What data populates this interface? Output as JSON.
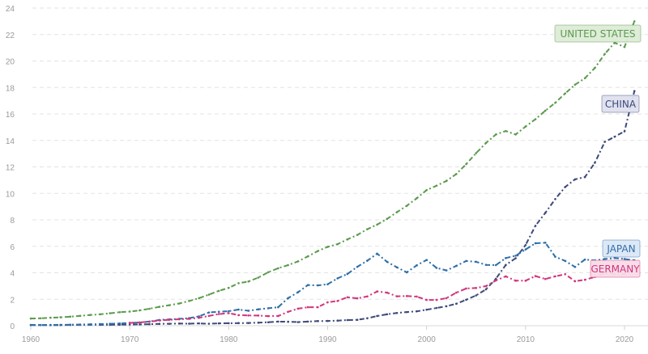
{
  "chart_data": {
    "type": "line",
    "title": "",
    "xlabel": "",
    "ylabel": "",
    "xlim": [
      1960,
      2021
    ],
    "ylim": [
      0,
      24
    ],
    "x_ticks": [
      "1960",
      "1970",
      "1980",
      "1990",
      "2000",
      "2010",
      "2020"
    ],
    "y_ticks": [
      "0",
      "2",
      "4",
      "6",
      "8",
      "10",
      "12",
      "14",
      "16",
      "18",
      "20",
      "22",
      "24"
    ],
    "grid": "horizontal dashed",
    "series": [
      {
        "name": "UNITED STATES",
        "color": "#5b9a4e",
        "label_bg": "#dcebd6",
        "start": 1960,
        "values": [
          0.543,
          0.563,
          0.605,
          0.638,
          0.686,
          0.744,
          0.815,
          0.862,
          0.943,
          1.02,
          1.07,
          1.16,
          1.28,
          1.43,
          1.55,
          1.68,
          1.87,
          2.08,
          2.35,
          2.63,
          2.86,
          3.21,
          3.34,
          3.64,
          4.04,
          4.34,
          4.58,
          4.86,
          5.24,
          5.64,
          5.96,
          6.16,
          6.52,
          6.86,
          7.29,
          7.64,
          8.07,
          8.58,
          9.06,
          9.63,
          10.25,
          10.58,
          10.94,
          11.46,
          12.21,
          13.04,
          13.81,
          14.45,
          14.71,
          14.45,
          15.05,
          15.6,
          16.25,
          16.84,
          17.55,
          18.21,
          18.7,
          19.48,
          20.53,
          21.38,
          21.06,
          23.0
        ]
      },
      {
        "name": "CHINA",
        "color": "#3d4a7a",
        "label_bg": "#dfe0ee",
        "start": 1960,
        "values": [
          0.06,
          0.05,
          0.047,
          0.051,
          0.059,
          0.07,
          0.076,
          0.072,
          0.07,
          0.079,
          0.093,
          0.1,
          0.114,
          0.139,
          0.144,
          0.163,
          0.154,
          0.175,
          0.149,
          0.178,
          0.191,
          0.196,
          0.205,
          0.231,
          0.26,
          0.31,
          0.301,
          0.273,
          0.313,
          0.348,
          0.361,
          0.383,
          0.427,
          0.445,
          0.564,
          0.734,
          0.864,
          0.962,
          1.03,
          1.09,
          1.21,
          1.34,
          1.47,
          1.66,
          1.96,
          2.29,
          2.75,
          3.55,
          4.59,
          5.1,
          6.09,
          7.55,
          8.53,
          9.57,
          10.48,
          11.06,
          11.23,
          12.31,
          13.89,
          14.28,
          14.69,
          17.73
        ]
      },
      {
        "name": "JAPAN",
        "color": "#2f6fa8",
        "label_bg": "#dbe7f5",
        "start": 1960,
        "values": [
          0.044,
          0.054,
          0.06,
          0.069,
          0.082,
          0.091,
          0.106,
          0.123,
          0.146,
          0.172,
          0.212,
          0.24,
          0.318,
          0.432,
          0.479,
          0.521,
          0.576,
          0.709,
          1.0,
          1.05,
          1.1,
          1.22,
          1.13,
          1.24,
          1.32,
          1.4,
          2.08,
          2.53,
          3.07,
          3.05,
          3.13,
          3.58,
          3.91,
          4.45,
          4.91,
          5.45,
          4.83,
          4.41,
          4.03,
          4.56,
          4.97,
          4.37,
          4.18,
          4.52,
          4.89,
          4.83,
          4.6,
          4.58,
          5.11,
          5.29,
          5.76,
          6.23,
          6.27,
          5.21,
          4.9,
          4.44,
          5.0,
          4.93,
          5.04,
          5.12,
          5.04,
          4.94
        ]
      },
      {
        "name": "GERMANY",
        "color": "#d1357a",
        "label_bg": "#f8dbe8",
        "start": 1970,
        "values": [
          0.216,
          0.249,
          0.3,
          0.398,
          0.446,
          0.489,
          0.519,
          0.6,
          0.74,
          0.882,
          0.95,
          0.8,
          0.777,
          0.77,
          0.725,
          0.734,
          1.05,
          1.29,
          1.4,
          1.4,
          1.77,
          1.87,
          2.15,
          2.07,
          2.21,
          2.59,
          2.5,
          2.22,
          2.24,
          2.2,
          1.95,
          1.95,
          2.08,
          2.5,
          2.81,
          2.85,
          2.99,
          3.42,
          3.73,
          3.4,
          3.4,
          3.75,
          3.53,
          3.73,
          3.89,
          3.36,
          3.47,
          3.69,
          3.98,
          3.89,
          3.89,
          4.26
        ]
      }
    ]
  }
}
